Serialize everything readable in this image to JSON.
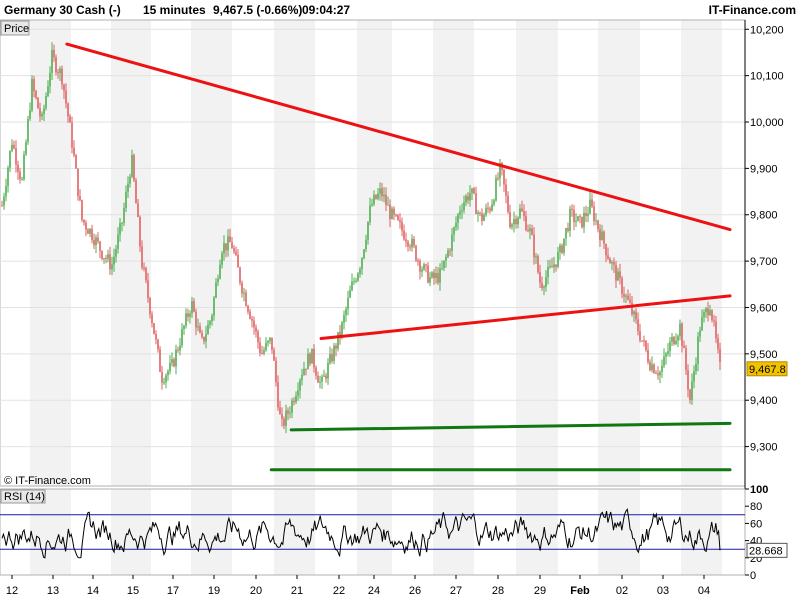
{
  "header": {
    "instrument": "Germany 30 Cash (-)",
    "timeframe": "15 minutes",
    "quote": "9,467.5 (-0.66%)",
    "time": "09:04:27",
    "brand": "IT-Finance.com"
  },
  "price_panel": {
    "tab_label": "Price",
    "copyright": "© IT-Finance.com",
    "current_price": "9,467.8"
  },
  "rsi_panel": {
    "label": "RSI (14)",
    "current_value": "28.668",
    "upper_band": 70,
    "lower_band": 30
  },
  "colors": {
    "up_candle": "#4caf50",
    "down_candle": "#e06060",
    "resistance": "#ee1111",
    "support": "#117711",
    "price_box": "#f2c200",
    "band_line": "#1a1aa8",
    "rsi_line": "#000000"
  },
  "chart_data": [
    {
      "type": "candlestick",
      "title": "Germany 30 Cash (-) 15 minutes",
      "ylabel": "Price",
      "ylim": [
        9215,
        10220
      ],
      "yticks": [
        9300,
        9400,
        9500,
        9600,
        9700,
        9800,
        9900,
        10000,
        10100,
        10200
      ],
      "ytick_labels": [
        "9,300",
        "9,400",
        "9,500",
        "9,600",
        "9,700",
        "9,800",
        "9,900",
        "10,000",
        "10,100",
        "10,200"
      ],
      "x_labels": [
        "12",
        "13",
        "14",
        "15",
        "17",
        "19",
        "20",
        "21",
        "22",
        "24",
        "26",
        "27",
        "28",
        "29",
        "Feb",
        "02",
        "03",
        "04"
      ],
      "last_price": 9467.8,
      "close_path": [
        [
          0,
          9820
        ],
        [
          1,
          9960
        ],
        [
          2,
          9870
        ],
        [
          3,
          10080
        ],
        [
          4,
          10000
        ],
        [
          5,
          10140
        ],
        [
          6,
          10100
        ],
        [
          7,
          9960
        ],
        [
          8,
          9790
        ],
        [
          9,
          9760
        ],
        [
          10,
          9720
        ],
        [
          11,
          9690
        ],
        [
          12,
          9780
        ],
        [
          13,
          9920
        ],
        [
          14,
          9700
        ],
        [
          15,
          9580
        ],
        [
          16,
          9450
        ],
        [
          17,
          9470
        ],
        [
          18,
          9540
        ],
        [
          19,
          9610
        ],
        [
          20,
          9520
        ],
        [
          21,
          9580
        ],
        [
          22,
          9730
        ],
        [
          23,
          9740
        ],
        [
          24,
          9650
        ],
        [
          25,
          9580
        ],
        [
          26,
          9500
        ],
        [
          27,
          9530
        ],
        [
          28,
          9340
        ],
        [
          29,
          9390
        ],
        [
          30,
          9460
        ],
        [
          31,
          9500
        ],
        [
          32,
          9430
        ],
        [
          33,
          9490
        ],
        [
          34,
          9550
        ],
        [
          35,
          9640
        ],
        [
          36,
          9700
        ],
        [
          37,
          9820
        ],
        [
          38,
          9850
        ],
        [
          39,
          9800
        ],
        [
          40,
          9770
        ],
        [
          41,
          9740
        ],
        [
          42,
          9690
        ],
        [
          43,
          9660
        ],
        [
          44,
          9670
        ],
        [
          45,
          9740
        ],
        [
          46,
          9820
        ],
        [
          47,
          9850
        ],
        [
          48,
          9790
        ],
        [
          49,
          9820
        ],
        [
          50,
          9900
        ],
        [
          51,
          9780
        ],
        [
          52,
          9810
        ],
        [
          53,
          9760
        ],
        [
          54,
          9650
        ],
        [
          55,
          9680
        ],
        [
          56,
          9720
        ],
        [
          57,
          9800
        ],
        [
          58,
          9780
        ],
        [
          59,
          9820
        ],
        [
          60,
          9760
        ],
        [
          61,
          9700
        ],
        [
          62,
          9650
        ],
        [
          63,
          9600
        ],
        [
          64,
          9540
        ],
        [
          65,
          9480
        ],
        [
          66,
          9460
        ],
        [
          67,
          9520
        ],
        [
          68,
          9560
        ],
        [
          69,
          9400
        ],
        [
          70,
          9560
        ],
        [
          71,
          9610
        ],
        [
          72,
          9467.8
        ]
      ],
      "trendlines": [
        {
          "name": "Upper resistance",
          "color": "resistance",
          "from": [
            6,
            10168
          ],
          "to": [
            72,
            9768
          ]
        },
        {
          "name": "Lower resistance",
          "color": "resistance",
          "from": [
            32,
            9533
          ],
          "to": [
            72,
            9625
          ]
        },
        {
          "name": "Upper support",
          "color": "support",
          "from": [
            29,
            9336
          ],
          "to": [
            72,
            9350
          ]
        },
        {
          "name": "Lower support",
          "color": "support",
          "from": [
            27,
            9250
          ],
          "to": [
            72,
            9250
          ]
        }
      ]
    },
    {
      "type": "line",
      "title": "RSI (14)",
      "ylim": [
        0,
        100
      ],
      "yticks": [
        0,
        20,
        40,
        60,
        80,
        100
      ],
      "ytick_labels": [
        "0",
        "20",
        "40",
        "60",
        "80",
        "100"
      ],
      "bands": [
        30,
        70
      ],
      "last_value": 28.668
    }
  ]
}
